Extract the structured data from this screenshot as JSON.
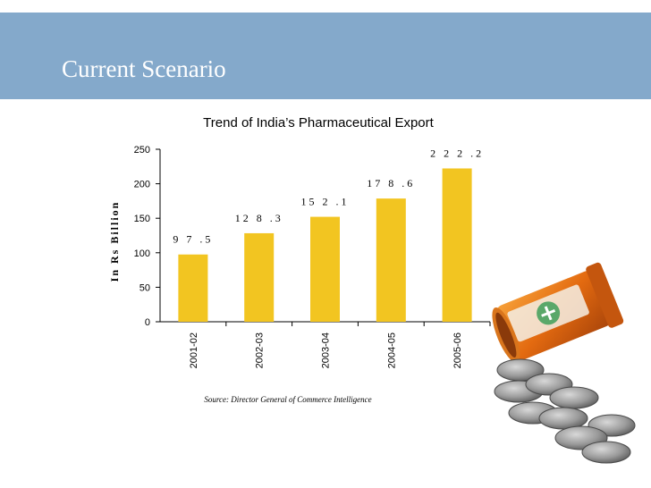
{
  "slide": {
    "title": "Current Scenario"
  },
  "colors": {
    "header_band": "#84a9cb",
    "bar": "#f2c521"
  },
  "chart_data": {
    "type": "bar",
    "title": "Trend of India’s Pharmaceutical Export",
    "ylabel": "In Rs Billion",
    "xlabel": "",
    "categories": [
      "2001-02",
      "2002-03",
      "2003-04",
      "2004-05",
      "2005-06"
    ],
    "values": [
      97.5,
      128.3,
      152.1,
      178.6,
      222.2
    ],
    "data_labels": [
      "9 7 .5",
      "12 8 .3",
      "15 2 .1",
      "17 8 .6",
      "2 2 2 .2"
    ],
    "ylim": [
      0,
      250
    ],
    "yticks": [
      0,
      50,
      100,
      150,
      200,
      250
    ],
    "grid": false,
    "legend": "none",
    "source": "Source: Director General of Commerce Intelligence"
  },
  "illustration": {
    "icon": "pill-bottle-with-coins-icon"
  }
}
